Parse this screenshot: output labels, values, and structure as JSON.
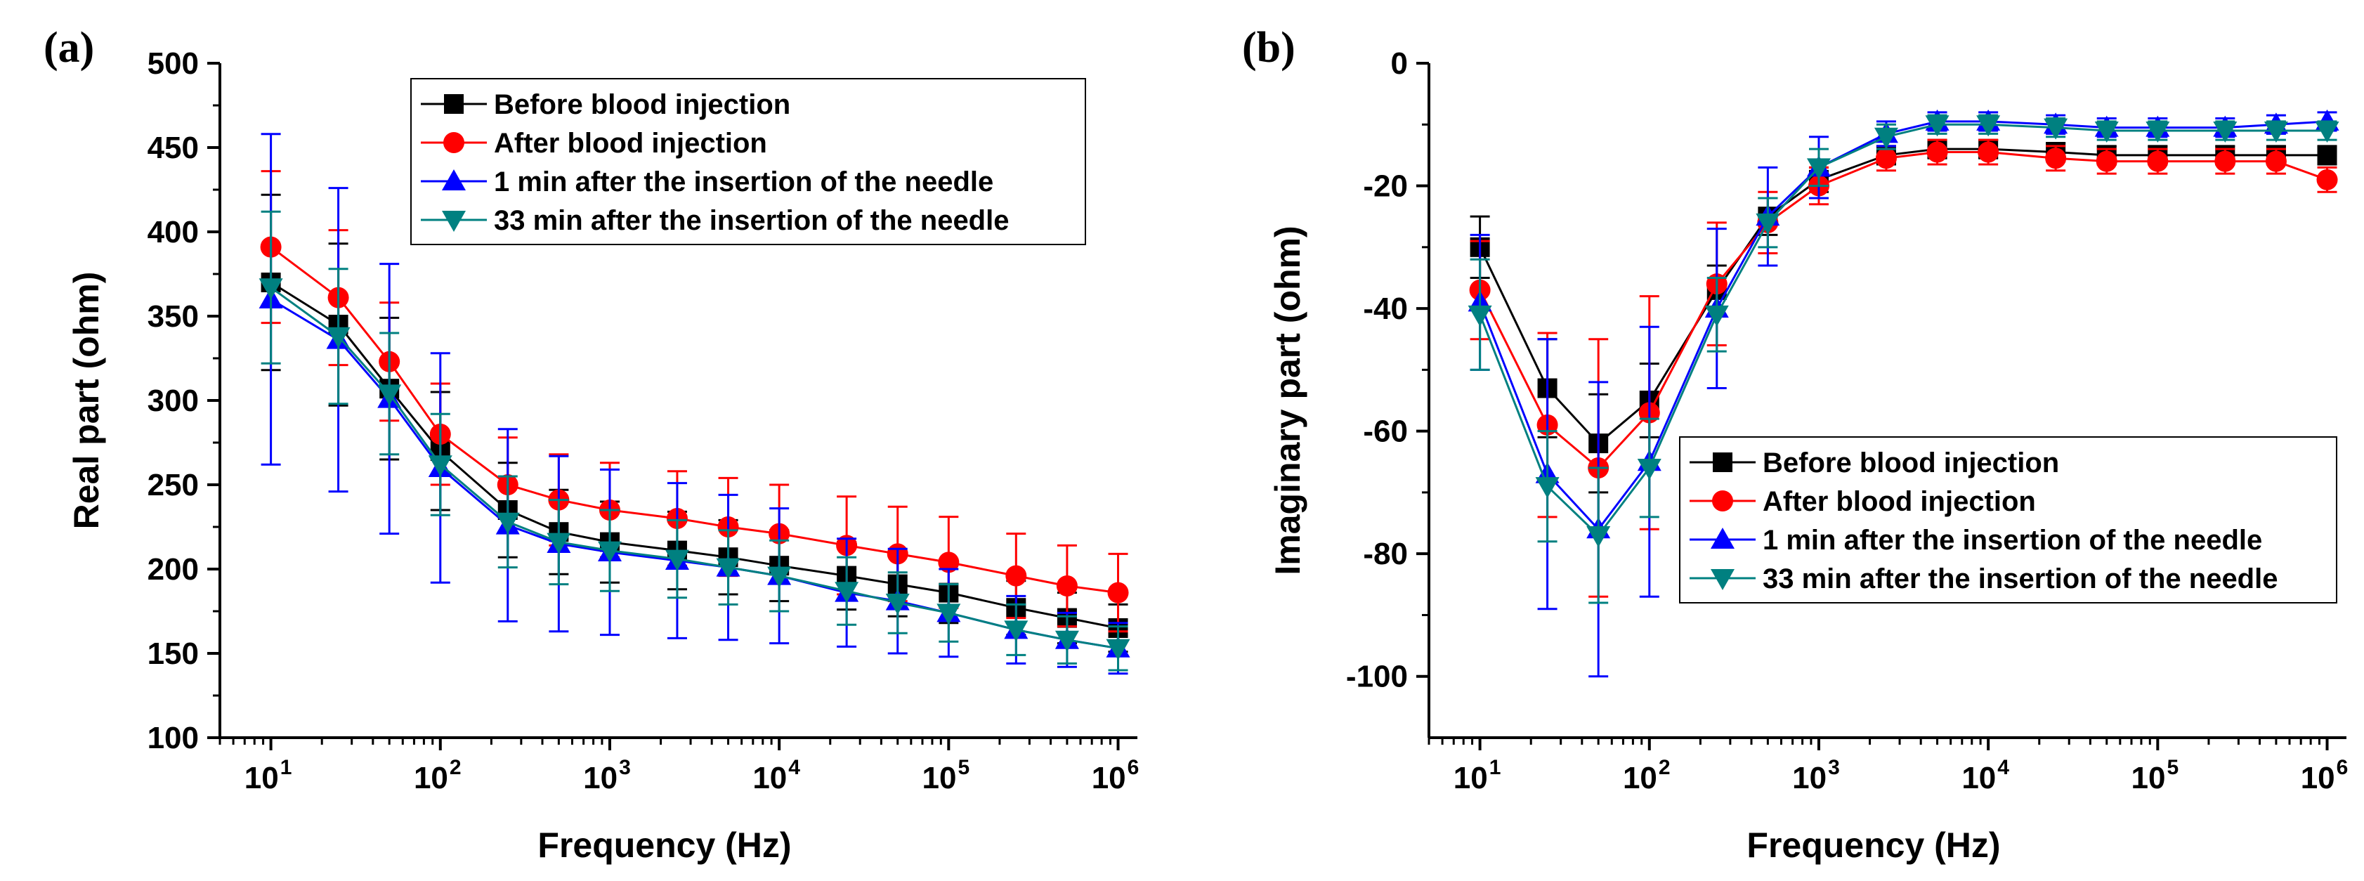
{
  "figure": {
    "panel_a_label": "(a)",
    "panel_b_label": "(b)"
  },
  "chart_data": [
    {
      "type": "line",
      "panel": "(a)",
      "title": "",
      "xlabel": "Frequency (Hz)",
      "ylabel": "Real part (ohm)",
      "xscale": "log",
      "xlim": [
        5,
        1300000
      ],
      "ylim": [
        100,
        500
      ],
      "xticks": [
        {
          "value": 10,
          "base": "10",
          "exp": "1"
        },
        {
          "value": 100,
          "base": "10",
          "exp": "2"
        },
        {
          "value": 1000,
          "base": "10",
          "exp": "3"
        },
        {
          "value": 10000,
          "base": "10",
          "exp": "4"
        },
        {
          "value": 100000,
          "base": "10",
          "exp": "5"
        },
        {
          "value": 1000000,
          "base": "10",
          "exp": "6"
        }
      ],
      "yticks": [
        100,
        150,
        200,
        250,
        300,
        350,
        400,
        450,
        500
      ],
      "ytick_labels": [
        "100",
        "150",
        "200",
        "250",
        "300",
        "350",
        "400",
        "450",
        "500"
      ],
      "legend_position": "top-right",
      "x": [
        10,
        25,
        50,
        100,
        250,
        500,
        1000,
        2500,
        5000,
        10000,
        25000,
        50000,
        100000,
        250000,
        500000,
        1000000
      ],
      "series": [
        {
          "name": "Before blood injection",
          "color": "#000000",
          "marker": "square",
          "values": [
            370,
            345,
            307,
            270,
            235,
            222,
            216,
            211,
            207,
            202,
            196,
            191,
            186,
            177,
            171,
            165
          ],
          "errors": [
            52,
            48,
            42,
            35,
            28,
            25,
            24,
            23,
            22,
            21,
            20,
            19,
            18,
            16,
            15,
            14
          ]
        },
        {
          "name": "After blood injection",
          "color": "#ff0000",
          "marker": "circle",
          "values": [
            391,
            361,
            323,
            280,
            250,
            241,
            235,
            230,
            225,
            221,
            214,
            209,
            204,
            196,
            190,
            186
          ],
          "errors": [
            45,
            40,
            35,
            30,
            28,
            27,
            28,
            28,
            29,
            29,
            29,
            28,
            27,
            25,
            24,
            23
          ]
        },
        {
          "name": "1 min after the insertion of the needle",
          "color": "#0000ff",
          "marker": "triangle-up",
          "values": [
            360,
            336,
            301,
            260,
            226,
            215,
            210,
            205,
            201,
            196,
            186,
            181,
            174,
            164,
            158,
            153
          ],
          "errors": [
            98,
            90,
            80,
            68,
            57,
            52,
            49,
            46,
            43,
            40,
            32,
            31,
            26,
            20,
            16,
            15
          ]
        },
        {
          "name": "33 min after the insertion of the needle",
          "color": "#008080",
          "marker": "triangle-down",
          "values": [
            367,
            338,
            304,
            262,
            228,
            216,
            211,
            206,
            201,
            196,
            187,
            180,
            174,
            164,
            158,
            153
          ],
          "errors": [
            45,
            40,
            36,
            30,
            27,
            25,
            24,
            23,
            22,
            21,
            20,
            18,
            17,
            15,
            14,
            13
          ]
        }
      ]
    },
    {
      "type": "line",
      "panel": "(b)",
      "title": "",
      "xlabel": "Frequency (Hz)",
      "ylabel": "Imaginary part (ohm)",
      "xscale": "log",
      "xlim": [
        5,
        1300000
      ],
      "ylim": [
        -110,
        0
      ],
      "xticks": [
        {
          "value": 10,
          "base": "10",
          "exp": "1"
        },
        {
          "value": 100,
          "base": "10",
          "exp": "2"
        },
        {
          "value": 1000,
          "base": "10",
          "exp": "3"
        },
        {
          "value": 10000,
          "base": "10",
          "exp": "4"
        },
        {
          "value": 100000,
          "base": "10",
          "exp": "5"
        },
        {
          "value": 1000000,
          "base": "10",
          "exp": "6"
        }
      ],
      "yticks": [
        0,
        -20,
        -40,
        -60,
        -80,
        -100
      ],
      "ytick_labels": [
        "0",
        "-20",
        "-40",
        "-60",
        "-80",
        "-100"
      ],
      "legend_position": "bottom-right",
      "x": [
        10,
        25,
        50,
        100,
        250,
        500,
        1000,
        2500,
        5000,
        10000,
        25000,
        50000,
        100000,
        250000,
        500000,
        1000000
      ],
      "series": [
        {
          "name": "Before blood injection",
          "color": "#000000",
          "marker": "square",
          "values": [
            -30,
            -53,
            -62,
            -55,
            -37,
            -25,
            -19,
            -15,
            -14,
            -14,
            -14.5,
            -15,
            -15,
            -15,
            -15,
            -15
          ],
          "errors": [
            5,
            8,
            8,
            6,
            4,
            3,
            2,
            1.5,
            1.5,
            1.5,
            1.5,
            1.5,
            1.5,
            1.5,
            1.5,
            1.5
          ]
        },
        {
          "name": "After blood injection",
          "color": "#ff0000",
          "marker": "circle",
          "values": [
            -37,
            -59,
            -66,
            -57,
            -36,
            -26,
            -20,
            -15.5,
            -14.5,
            -14.5,
            -15.5,
            -16,
            -16,
            -16,
            -16,
            -19
          ],
          "errors": [
            8,
            15,
            21,
            19,
            10,
            5,
            3,
            2,
            2,
            2,
            2,
            2,
            2,
            2,
            2,
            2
          ]
        },
        {
          "name": "1 min after the insertion of the needle",
          "color": "#0000ff",
          "marker": "triangle-up",
          "values": [
            -39,
            -67,
            -76,
            -65,
            -40,
            -25,
            -17,
            -11.5,
            -9.5,
            -9.5,
            -10,
            -10.5,
            -10.5,
            -10.5,
            -10,
            -9.5
          ],
          "errors": [
            11,
            22,
            24,
            22,
            13,
            8,
            5,
            2,
            1.5,
            1.5,
            1.5,
            1.5,
            1.5,
            1.5,
            1.5,
            1.5
          ]
        },
        {
          "name": "33 min after the insertion of the needle",
          "color": "#008080",
          "marker": "triangle-down",
          "values": [
            -41,
            -69,
            -77,
            -66,
            -41,
            -26,
            -17,
            -12,
            -10,
            -10,
            -10.5,
            -11,
            -11,
            -11,
            -11,
            -11
          ],
          "errors": [
            9,
            9,
            11,
            8,
            6,
            4,
            3,
            2,
            1.5,
            1.5,
            1.5,
            1.5,
            1.5,
            1.5,
            1.5,
            1.5
          ]
        }
      ]
    }
  ]
}
